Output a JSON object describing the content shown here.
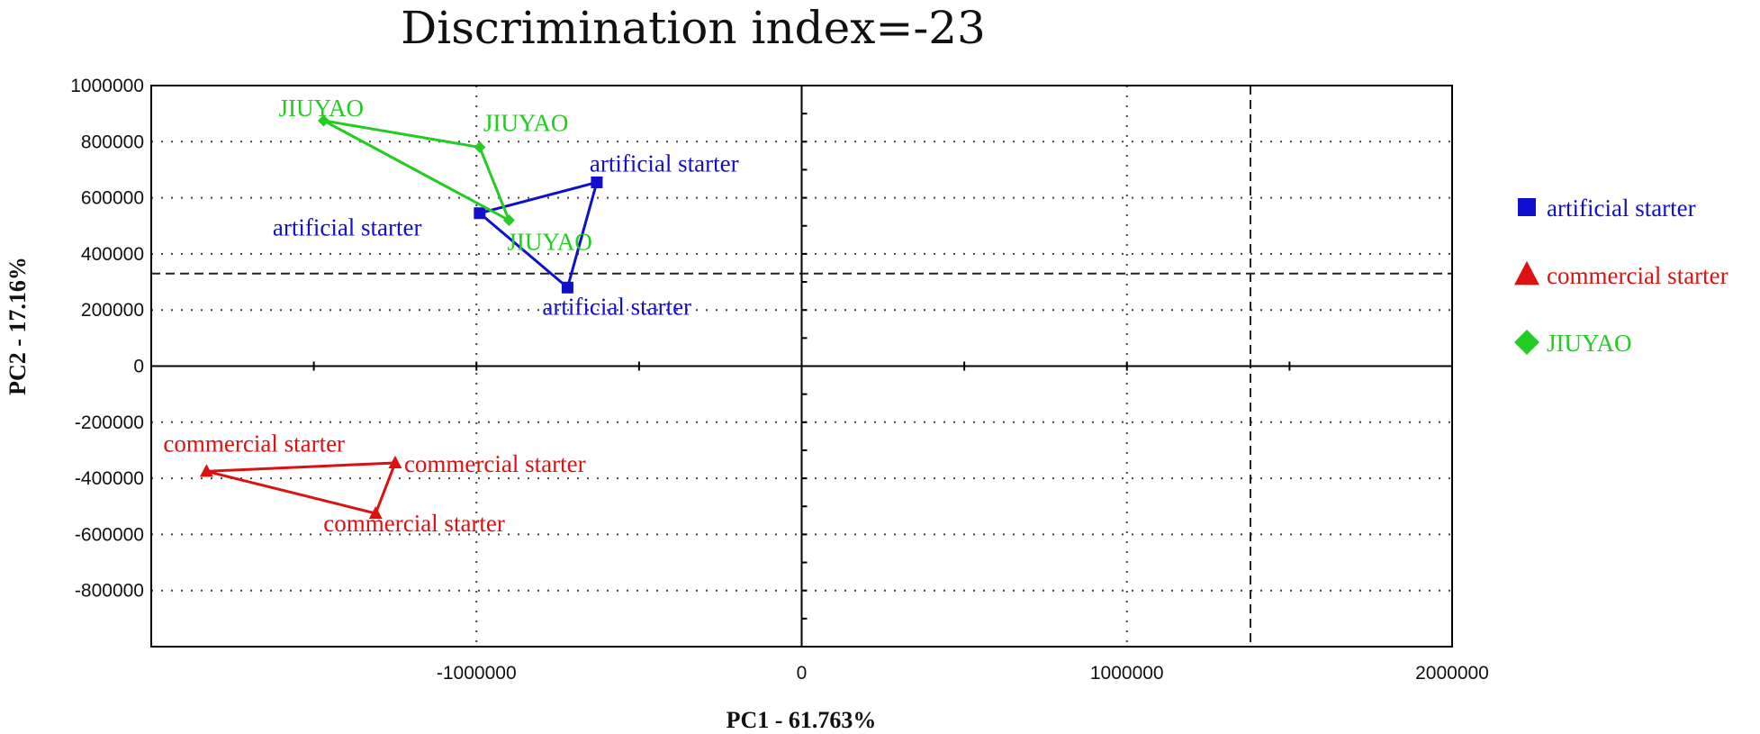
{
  "chart_data": {
    "type": "scatter",
    "title": "Discrimination index=-23",
    "xlabel": "PC1 - 61.763%",
    "ylabel": "PC2 - 17.16%",
    "xlim": [
      -2000000,
      2000000
    ],
    "ylim": [
      -1000000,
      1000000
    ],
    "x_ticks": [
      -1000000,
      0,
      1000000,
      2000000
    ],
    "x_tick_labels": [
      "-1000000",
      "0",
      "1000000",
      "2000000"
    ],
    "y_ticks": [
      1000000,
      800000,
      600000,
      400000,
      200000,
      0,
      -200000,
      -400000,
      -600000,
      -800000
    ],
    "y_tick_labels": [
      "1000000",
      "800000",
      "600000",
      "400000",
      "200000",
      "0",
      "-200000",
      "-400000",
      "-600000",
      "-800000"
    ],
    "grid": true,
    "reference_lines": {
      "vertical_dashed_x": 1380000,
      "horizontal_dashed_y": 330000
    },
    "legend": {
      "position": "right"
    },
    "series": [
      {
        "name": "artificial starter",
        "color": "#1010cc",
        "marker": "square",
        "points": [
          {
            "x": -990000,
            "y": 545000,
            "label": "artificial starter"
          },
          {
            "x": -630000,
            "y": 655000,
            "label": "artificial starter"
          },
          {
            "x": -720000,
            "y": 280000,
            "label": "artificial starter"
          }
        ]
      },
      {
        "name": "commercial starter",
        "color": "#dd1111",
        "marker": "triangle",
        "points": [
          {
            "x": -1830000,
            "y": -375000,
            "label": "commercial starter"
          },
          {
            "x": -1250000,
            "y": -345000,
            "label": "commercial starter"
          },
          {
            "x": -1310000,
            "y": -525000,
            "label": "commercial starter"
          }
        ]
      },
      {
        "name": "JIUYAO",
        "color": "#22cc22",
        "marker": "diamond",
        "points": [
          {
            "x": -1470000,
            "y": 875000,
            "label": "JIUYAO"
          },
          {
            "x": -990000,
            "y": 780000,
            "label": "JIUYAO"
          },
          {
            "x": -900000,
            "y": 520000,
            "label": "JIUYAO"
          }
        ]
      }
    ]
  }
}
